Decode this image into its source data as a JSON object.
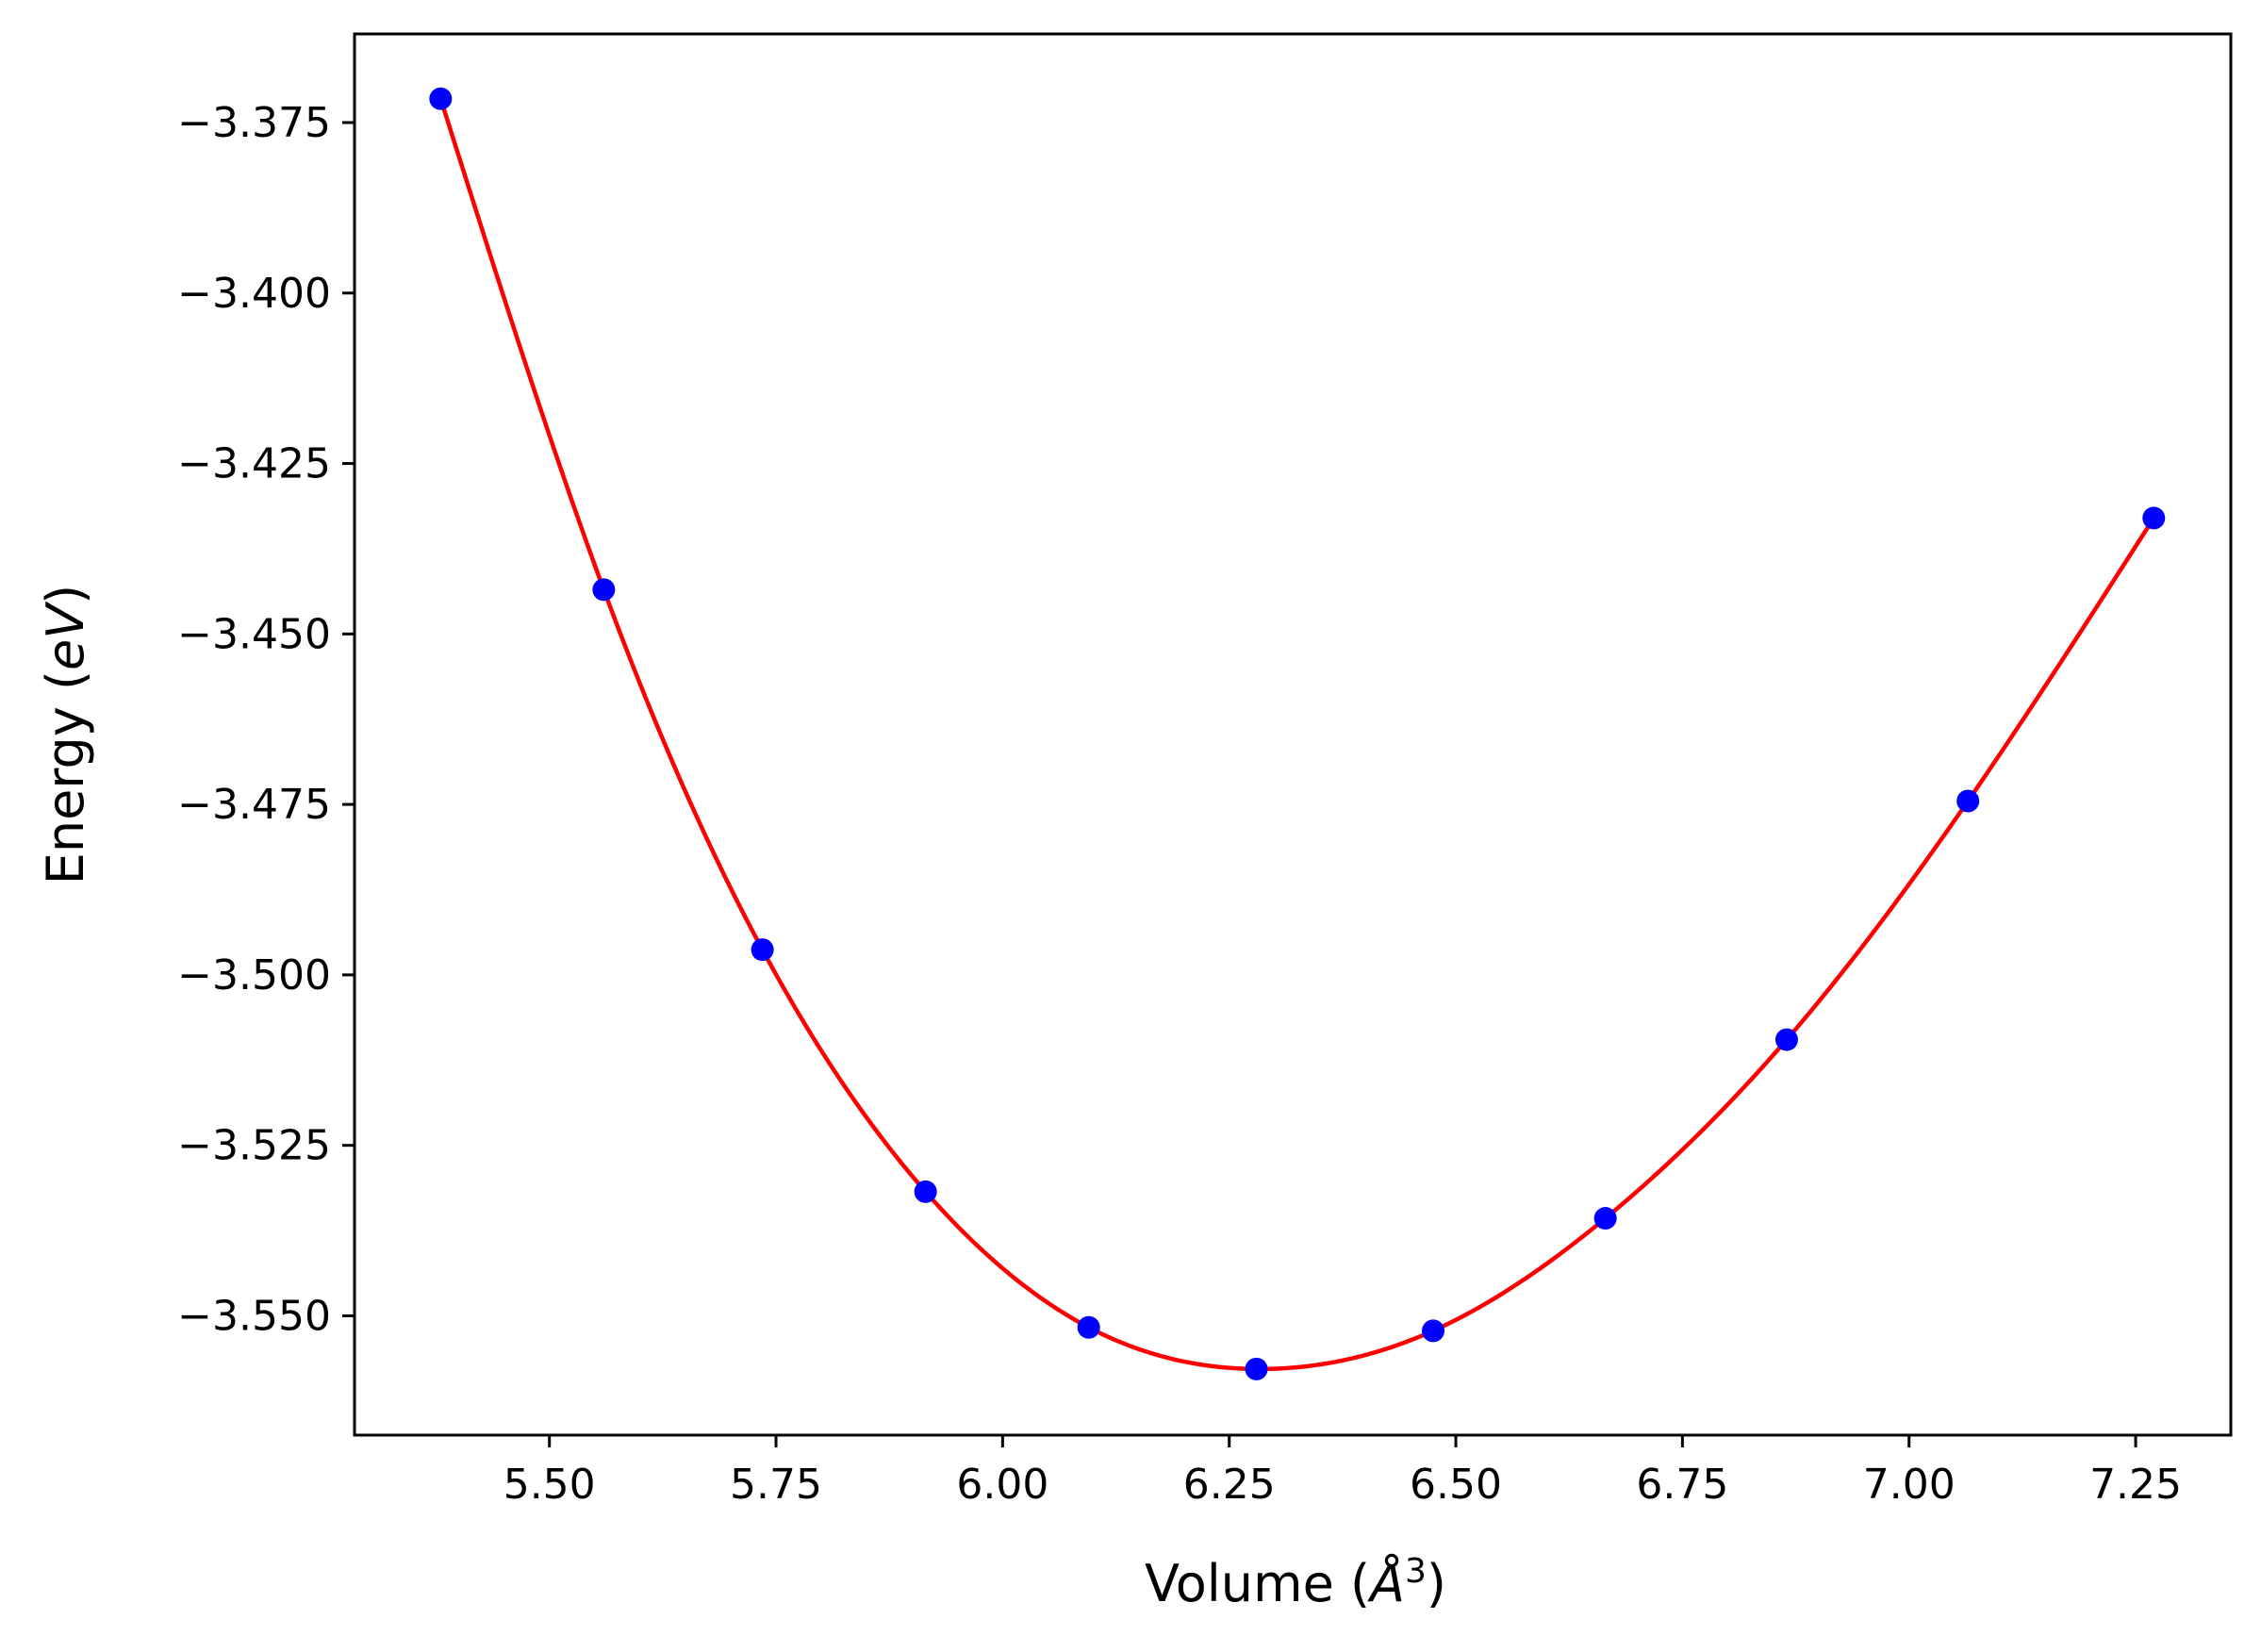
{
  "chart_data": {
    "type": "line",
    "xlabel_prefix": "Volume (",
    "xlabel_unit": "Å",
    "xlabel_sup": "3",
    "xlabel_suffix": ")",
    "ylabel_prefix": "Energy (",
    "ylabel_unit": "eV",
    "ylabel_suffix": ")",
    "xlim": [
      5.285,
      7.355
    ],
    "ylim": [
      -3.5675,
      -3.362
    ],
    "xticks": [
      5.5,
      5.75,
      6.0,
      6.25,
      6.5,
      6.75,
      7.0,
      7.25
    ],
    "xtick_labels": [
      "5.50",
      "5.75",
      "6.00",
      "6.25",
      "6.50",
      "6.75",
      "7.00",
      "7.25"
    ],
    "yticks": [
      -3.375,
      -3.4,
      -3.425,
      -3.45,
      -3.475,
      -3.5,
      -3.525,
      -3.55
    ],
    "ytick_labels": [
      "−3.375",
      "−3.400",
      "−3.425",
      "−3.450",
      "−3.475",
      "−3.500",
      "−3.525",
      "−3.550"
    ],
    "grid": false,
    "series": [
      {
        "kind": "points",
        "color": "#0000ff",
        "x": [
          5.38,
          5.56,
          5.735,
          5.915,
          6.095,
          6.28,
          6.475,
          6.665,
          6.865,
          7.065,
          7.27
        ],
        "y": [
          -3.3715,
          -3.4435,
          -3.4963,
          -3.5318,
          -3.5517,
          -3.5578,
          -3.5522,
          -3.5357,
          -3.5095,
          -3.4745,
          -3.433
        ]
      },
      {
        "kind": "fit-curve",
        "color": "#ff0000"
      }
    ]
  }
}
